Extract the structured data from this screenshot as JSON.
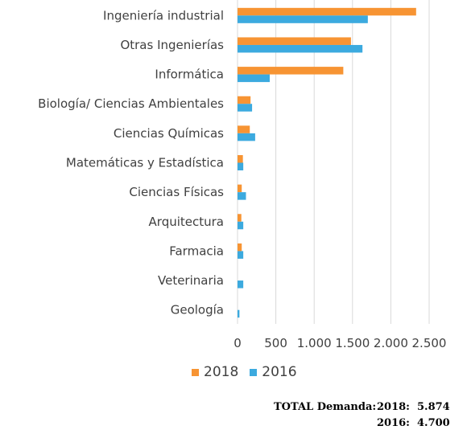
{
  "chart_data": {
    "type": "bar",
    "orientation": "horizontal",
    "categories": [
      "Ingeniería industrial",
      "Otras Ingenierías",
      "Informática",
      "Biología/ Ciencias Ambientales",
      "Ciencias Químicas",
      "Matemáticas y Estadística",
      "Ciencias Físicas",
      "Arquitectura",
      "Farmacia",
      "Veterinaria",
      "Geología"
    ],
    "series": [
      {
        "name": "2018",
        "color": "#f79433",
        "values": [
          2330,
          1480,
          1380,
          170,
          160,
          70,
          55,
          50,
          55,
          0,
          0
        ]
      },
      {
        "name": "2016",
        "color": "#3caadf",
        "values": [
          1700,
          1630,
          420,
          190,
          230,
          75,
          110,
          75,
          75,
          75,
          25
        ]
      }
    ],
    "xlim": [
      0,
      2500
    ],
    "xticks": [
      0,
      500,
      1000,
      1500,
      2000,
      2500
    ],
    "xtick_labels": [
      "0",
      "500",
      "1.000",
      "1.500",
      "2.000",
      "2.500"
    ],
    "grid": "vertical",
    "legend": "bottom"
  },
  "totals": {
    "label": "TOTAL Demanda:",
    "rows": [
      {
        "year": "2018:",
        "value": "5.874"
      },
      {
        "year": "2016:",
        "value": "4.700"
      }
    ]
  }
}
